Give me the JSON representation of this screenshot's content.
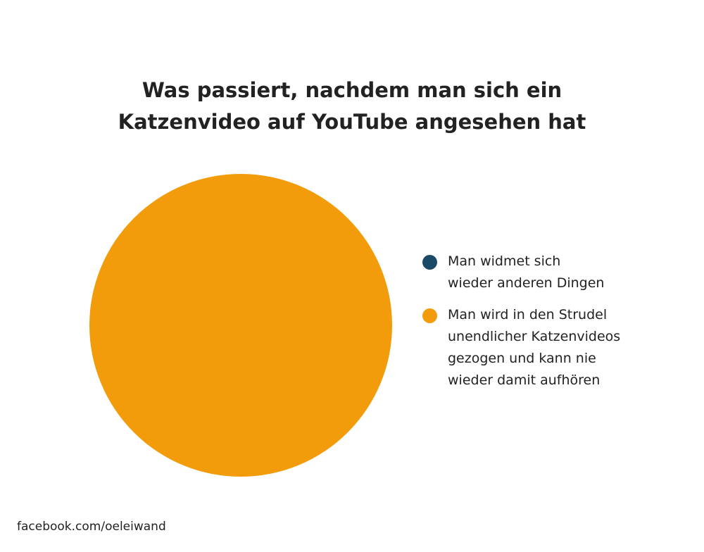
{
  "chart_data": {
    "type": "pie",
    "title": "Was passiert, nachdem man sich ein\nKatzenvideo auf YouTube angesehen hat",
    "categories": [
      "Man widmet sich\nwieder anderen Dingen",
      "Man wird in den Strudel\nunendlicher Katzenvideos\ngezogen und kann nie\nwieder damit aufhören"
    ],
    "values": [
      0,
      100
    ],
    "colors": [
      "#1b4a66",
      "#f39c0b"
    ],
    "legend": "right"
  },
  "footer": "facebook.com/oeleiwand"
}
